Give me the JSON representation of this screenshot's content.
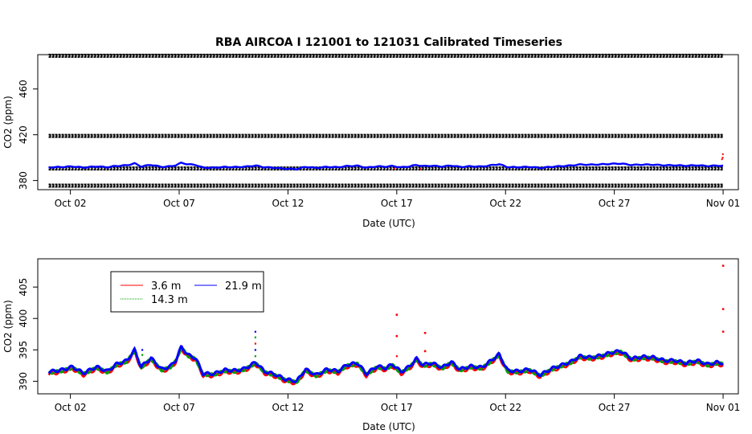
{
  "chart_data": [
    {
      "type": "scatter",
      "title": "RBA   AIRCOA  I    121001  to  121031   Calibrated Timeseries",
      "xlabel": "Date (UTC)",
      "ylabel": "CO2 (ppm)",
      "x_tick_labels": [
        "Oct 02",
        "Oct 07",
        "Oct 12",
        "Oct 17",
        "Oct 22",
        "Oct 27",
        "Nov 01"
      ],
      "x_tick_days": [
        1,
        6,
        11,
        16,
        21,
        26,
        31
      ],
      "xlim": [
        -0.5,
        31.7
      ],
      "y_ticks": [
        380,
        420,
        460
      ],
      "y_tick_labels": [
        "380",
        "420",
        "460"
      ],
      "ylim": [
        372,
        490
      ],
      "grid": false,
      "calibration_bands": [
        375.5,
        390.5,
        419,
        489
      ],
      "band_color": "#000000",
      "series_points": [
        {
          "color": "#ff0000",
          "points": [
            [
              15.9,
              390.4
            ],
            [
              17.1,
              390.0
            ],
            [
              30.95,
              398.6
            ],
            [
              30.98,
              400.0
            ],
            [
              30.99,
              403.0
            ]
          ]
        }
      ],
      "series": [
        {
          "color": "#0000ff",
          "base_offset": 0
        }
      ]
    },
    {
      "type": "line",
      "title": "",
      "xlabel": "Date (UTC)",
      "ylabel": "CO2 (ppm)",
      "x_tick_labels": [
        "Oct 02",
        "Oct 07",
        "Oct 12",
        "Oct 17",
        "Oct 22",
        "Oct 27",
        "Nov 01"
      ],
      "x_tick_days": [
        1,
        6,
        11,
        16,
        21,
        26,
        31
      ],
      "xlim": [
        -0.5,
        31.7
      ],
      "y_ticks": [
        390,
        395,
        400,
        405
      ],
      "y_tick_labels": [
        "390",
        "395",
        "400",
        "405"
      ],
      "ylim": [
        388,
        409.5
      ],
      "grid": false,
      "legend": {
        "placement": "top-left",
        "entries": [
          {
            "name": "3.6 m",
            "color": "#ff0000"
          },
          {
            "name": "14.3 m",
            "color": "#00a000"
          },
          {
            "name": "21.9 m",
            "color": "#0000ff"
          }
        ]
      },
      "series": [
        {
          "name": "3.6 m",
          "color": "#ff0000",
          "offset": -0.35
        },
        {
          "name": "14.3 m",
          "color": "#00a000",
          "offset": -0.15
        },
        {
          "name": "21.9 m",
          "color": "#0000ff",
          "offset": 0
        }
      ],
      "base_curve": [
        [
          0.0,
          391.5
        ],
        [
          0.6,
          391.8
        ],
        [
          1.1,
          392.3
        ],
        [
          1.6,
          391.3
        ],
        [
          2.2,
          392.3
        ],
        [
          2.7,
          391.6
        ],
        [
          3.1,
          392.7
        ],
        [
          3.6,
          393.3
        ],
        [
          3.95,
          395.0
        ],
        [
          4.25,
          392.3
        ],
        [
          4.7,
          393.7
        ],
        [
          5.2,
          391.9
        ],
        [
          5.6,
          392.4
        ],
        [
          5.85,
          393.4
        ],
        [
          6.1,
          395.5
        ],
        [
          6.4,
          394.2
        ],
        [
          6.75,
          393.7
        ],
        [
          7.1,
          391.2
        ],
        [
          7.6,
          391.2
        ],
        [
          8.1,
          391.8
        ],
        [
          8.6,
          391.7
        ],
        [
          9.0,
          392.0
        ],
        [
          9.5,
          393.0
        ],
        [
          9.65,
          392.6
        ],
        [
          9.9,
          391.6
        ],
        [
          10.4,
          391.1
        ],
        [
          10.9,
          390.3
        ],
        [
          11.4,
          390.0
        ],
        [
          11.8,
          391.9
        ],
        [
          12.3,
          391.0
        ],
        [
          12.8,
          391.9
        ],
        [
          13.3,
          391.6
        ],
        [
          13.7,
          392.6
        ],
        [
          14.2,
          392.9
        ],
        [
          14.6,
          391.2
        ],
        [
          15.1,
          392.4
        ],
        [
          15.5,
          392.1
        ],
        [
          15.8,
          392.7
        ],
        [
          16.2,
          391.5
        ],
        [
          16.6,
          392.4
        ],
        [
          16.9,
          393.6
        ],
        [
          17.2,
          392.6
        ],
        [
          17.6,
          392.9
        ],
        [
          18.1,
          392.2
        ],
        [
          18.5,
          393.1
        ],
        [
          18.9,
          391.9
        ],
        [
          19.4,
          392.4
        ],
        [
          19.9,
          392.2
        ],
        [
          20.3,
          393.2
        ],
        [
          20.7,
          394.3
        ],
        [
          21.1,
          391.7
        ],
        [
          21.6,
          391.6
        ],
        [
          22.1,
          391.9
        ],
        [
          22.6,
          391.0
        ],
        [
          23.1,
          392.0
        ],
        [
          23.6,
          392.6
        ],
        [
          24.0,
          393.1
        ],
        [
          24.4,
          394.0
        ],
        [
          24.9,
          393.8
        ],
        [
          25.4,
          394.1
        ],
        [
          25.9,
          394.6
        ],
        [
          26.3,
          394.8
        ],
        [
          26.8,
          393.6
        ],
        [
          27.3,
          393.9
        ],
        [
          27.8,
          393.8
        ],
        [
          28.3,
          393.3
        ],
        [
          28.8,
          393.3
        ],
        [
          29.3,
          392.9
        ],
        [
          29.8,
          393.3
        ],
        [
          30.3,
          392.7
        ],
        [
          30.7,
          393.0
        ],
        [
          31.0,
          392.9
        ]
      ],
      "spikes": [
        {
          "x": 4.3,
          "values": [
            395.0,
            394.2
          ]
        },
        {
          "x": 9.5,
          "values": [
            397.9,
            397.0,
            396.0,
            395.0,
            394.0
          ]
        },
        {
          "x": 16.0,
          "values": [
            400.6,
            397.2,
            394.0
          ]
        },
        {
          "x": 17.3,
          "values": [
            397.7,
            394.8
          ]
        }
      ],
      "series_points": [
        {
          "color": "#ff0000",
          "points": [
            [
              31.0,
              408.4
            ],
            [
              31.0,
              401.5
            ],
            [
              31.0,
              397.9
            ],
            [
              16.0,
              400.6
            ],
            [
              16.0,
              397.2
            ],
            [
              17.3,
              397.7
            ],
            [
              17.3,
              394.8
            ]
          ]
        }
      ]
    }
  ]
}
